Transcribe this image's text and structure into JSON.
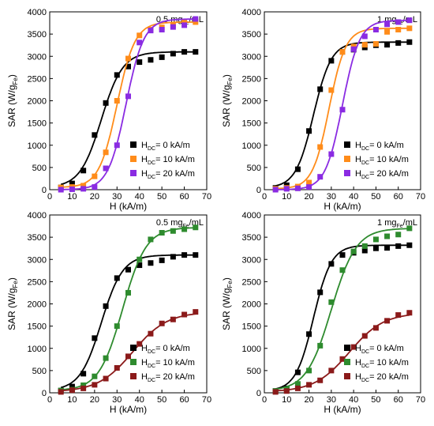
{
  "chart_data": [
    {
      "type": "scatter",
      "annotation": {
        "main": "0.5 mg",
        "sub": "Fe",
        "tail": "/mL"
      },
      "xlabel": "H (kA/m)",
      "ylabel": {
        "main": "SAR (W/g",
        "sub": "Fe",
        "tail": ")"
      },
      "xlim": [
        0,
        70
      ],
      "ylim": [
        0,
        4000
      ],
      "xticks": [
        0,
        10,
        20,
        30,
        40,
        50,
        60,
        70
      ],
      "yticks": [
        0,
        500,
        1000,
        1500,
        2000,
        2500,
        3000,
        3500,
        4000
      ],
      "grid": false,
      "legend_position": "bottom-right",
      "series": [
        {
          "name": {
            "pre": "H",
            "sub": "DC",
            "label": "= 0 kA/m"
          },
          "color": "#000000",
          "x": [
            5,
            10,
            15,
            20,
            25,
            30,
            35,
            40,
            45,
            50,
            55,
            60,
            65
          ],
          "y": [
            50,
            140,
            430,
            1230,
            1950,
            2580,
            2770,
            2870,
            2920,
            2980,
            3060,
            3100,
            3100
          ]
        },
        {
          "name": {
            "pre": "H",
            "sub": "DC",
            "label": "= 10 kA/m"
          },
          "color": "#ff8c1a",
          "x": [
            5,
            10,
            15,
            20,
            25,
            30,
            35,
            40,
            45,
            50,
            55,
            60,
            65
          ],
          "y": [
            50,
            60,
            90,
            300,
            840,
            2000,
            2950,
            3470,
            3600,
            3650,
            3700,
            3760,
            3770
          ]
        },
        {
          "name": {
            "pre": "H",
            "sub": "DC",
            "label": "= 20 kA/m"
          },
          "color": "#8a2be2",
          "x": [
            5,
            10,
            15,
            20,
            25,
            30,
            35,
            40,
            45,
            50,
            55,
            60,
            65
          ],
          "y": [
            0,
            10,
            20,
            60,
            480,
            1000,
            2100,
            3310,
            3580,
            3600,
            3660,
            3700,
            3840
          ]
        }
      ]
    },
    {
      "type": "scatter",
      "annotation": {
        "main": "1 mg",
        "sub": "Fe",
        "tail": "/mL"
      },
      "xlabel": "H (kA/m)",
      "ylabel": {
        "main": "SAR (W/g",
        "sub": "Fe",
        "tail": ")"
      },
      "xlim": [
        0,
        70
      ],
      "ylim": [
        0,
        4000
      ],
      "xticks": [
        0,
        10,
        20,
        30,
        40,
        50,
        60,
        70
      ],
      "yticks": [
        0,
        500,
        1000,
        1500,
        2000,
        2500,
        3000,
        3500,
        4000
      ],
      "grid": false,
      "legend_position": "bottom-right",
      "series": [
        {
          "name": {
            "pre": "H",
            "sub": "DC",
            "label": "= 0 kA/m"
          },
          "color": "#000000",
          "x": [
            5,
            10,
            15,
            20,
            25,
            30,
            35,
            40,
            45,
            50,
            55,
            60,
            65
          ],
          "y": [
            40,
            100,
            460,
            1320,
            2260,
            2900,
            3100,
            3150,
            3200,
            3250,
            3260,
            3300,
            3320
          ]
        },
        {
          "name": {
            "pre": "H",
            "sub": "DC",
            "label": "= 10 kA/m"
          },
          "color": "#ff8c1a",
          "x": [
            5,
            10,
            15,
            20,
            25,
            30,
            35,
            40,
            45,
            50,
            55,
            60,
            65
          ],
          "y": [
            20,
            40,
            70,
            160,
            960,
            2240,
            3100,
            3220,
            3260,
            3280,
            3550,
            3600,
            3630
          ]
        },
        {
          "name": {
            "pre": "H",
            "sub": "DC",
            "label": "= 20 kA/m"
          },
          "color": "#8a2be2",
          "x": [
            5,
            10,
            15,
            20,
            25,
            30,
            35,
            40,
            45,
            50,
            55,
            60,
            65
          ],
          "y": [
            0,
            20,
            30,
            60,
            290,
            800,
            1800,
            3160,
            3450,
            3600,
            3720,
            3770,
            3810
          ]
        }
      ]
    },
    {
      "type": "scatter",
      "annotation": {
        "main": "0.5 mg",
        "sub": "Fe",
        "tail": "/mL"
      },
      "xlabel": "H (kA/m)",
      "ylabel": {
        "main": "SAR (W/g",
        "sub": "Fe",
        "tail": ")"
      },
      "xlim": [
        0,
        70
      ],
      "ylim": [
        0,
        4000
      ],
      "xticks": [
        0,
        10,
        20,
        30,
        40,
        50,
        60,
        70
      ],
      "yticks": [
        0,
        500,
        1000,
        1500,
        2000,
        2500,
        3000,
        3500,
        4000
      ],
      "grid": false,
      "legend_position": "bottom-right",
      "series": [
        {
          "name": {
            "pre": "H",
            "sub": "DC",
            "label": "= 0 kA/m"
          },
          "color": "#000000",
          "x": [
            5,
            10,
            15,
            20,
            25,
            30,
            35,
            40,
            45,
            50,
            55,
            60,
            65
          ],
          "y": [
            50,
            140,
            430,
            1230,
            1950,
            2580,
            2770,
            2870,
            2920,
            2980,
            3060,
            3100,
            3100
          ]
        },
        {
          "name": {
            "pre": "H",
            "sub": "DC",
            "label": "= 10 kA/m"
          },
          "color": "#2e8b2e",
          "x": [
            5,
            10,
            15,
            20,
            25,
            30,
            35,
            40,
            45,
            50,
            55,
            60,
            65
          ],
          "y": [
            50,
            70,
            170,
            370,
            780,
            1500,
            2250,
            3000,
            3450,
            3600,
            3640,
            3680,
            3720
          ]
        },
        {
          "name": {
            "pre": "H",
            "sub": "DC",
            "label": "= 20 kA/m"
          },
          "color": "#8b1a1a",
          "x": [
            5,
            10,
            15,
            20,
            25,
            30,
            35,
            40,
            45,
            50,
            55,
            60,
            65
          ],
          "y": [
            20,
            60,
            100,
            180,
            320,
            560,
            820,
            1100,
            1330,
            1560,
            1650,
            1760,
            1820
          ]
        }
      ]
    },
    {
      "type": "scatter",
      "annotation": {
        "main": "1 mg",
        "sub": "Fe",
        "tail": "/mL"
      },
      "xlabel": "H (kA/m)",
      "ylabel": {
        "main": "SAR (W/g",
        "sub": "Fe",
        "tail": ")"
      },
      "xlim": [
        0,
        70
      ],
      "ylim": [
        0,
        4000
      ],
      "xticks": [
        0,
        10,
        20,
        30,
        40,
        50,
        60,
        70
      ],
      "yticks": [
        0,
        500,
        1000,
        1500,
        2000,
        2500,
        3000,
        3500,
        4000
      ],
      "grid": false,
      "legend_position": "bottom-right",
      "series": [
        {
          "name": {
            "pre": "H",
            "sub": "DC",
            "label": "= 0 kA/m"
          },
          "color": "#000000",
          "x": [
            5,
            10,
            15,
            20,
            25,
            30,
            35,
            40,
            45,
            50,
            55,
            60,
            65
          ],
          "y": [
            40,
            100,
            460,
            1320,
            2260,
            2900,
            3100,
            3150,
            3200,
            3250,
            3260,
            3300,
            3320
          ]
        },
        {
          "name": {
            "pre": "H",
            "sub": "DC",
            "label": "= 10 kA/m"
          },
          "color": "#2e8b2e",
          "x": [
            5,
            10,
            15,
            20,
            25,
            30,
            35,
            40,
            45,
            50,
            55,
            60,
            65
          ],
          "y": [
            40,
            80,
            200,
            500,
            1060,
            2040,
            2760,
            3180,
            3300,
            3450,
            3520,
            3560,
            3700
          ]
        },
        {
          "name": {
            "pre": "H",
            "sub": "DC",
            "label": "= 20 kA/m"
          },
          "color": "#8b1a1a",
          "x": [
            5,
            10,
            15,
            20,
            25,
            30,
            35,
            40,
            45,
            50,
            55,
            60,
            65
          ],
          "y": [
            20,
            40,
            100,
            180,
            280,
            500,
            760,
            1030,
            1280,
            1460,
            1620,
            1750,
            1800
          ]
        }
      ]
    }
  ]
}
